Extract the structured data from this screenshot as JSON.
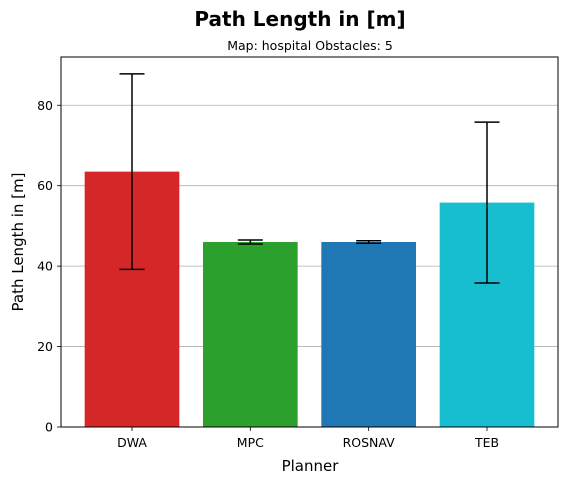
{
  "chart_data": {
    "type": "bar",
    "title": "Path Length in [m]",
    "subtitle": "Map: hospital Obstacles: 5",
    "xlabel": "Planner",
    "ylabel": "Path Length in [m]",
    "categories": [
      "DWA",
      "MPC",
      "ROSNAV",
      "TEB"
    ],
    "values": [
      63.5,
      46.0,
      46.0,
      55.8
    ],
    "errors": [
      24.3,
      0.5,
      0.3,
      20.0
    ],
    "colors": [
      "#d62728",
      "#2ca02c",
      "#1f77b4",
      "#17becf"
    ],
    "ylim": [
      0,
      92
    ],
    "yticks": [
      0,
      20,
      40,
      60,
      80
    ],
    "grid": "y-major",
    "legend": "none"
  }
}
